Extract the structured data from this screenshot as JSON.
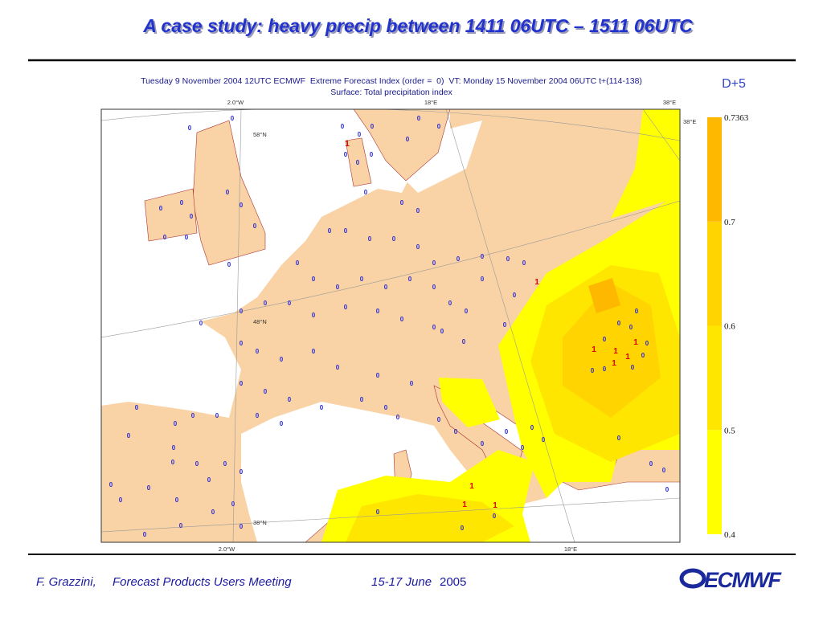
{
  "header": {
    "title": "A case study: heavy precip between 1411 06UTC – 1511 06UTC"
  },
  "map": {
    "caption_line1": "Tuesday 9 November 2004 12UTC ECMWF  Extreme Forecast Index (order =  0)  VT: Monday 15 November 2004 06UTC t+(114-138)",
    "caption_line2": "Surface: Total precipitation index",
    "lead_time": "D+5",
    "lon_labels_top": [
      "2.0°W",
      "18°E",
      "38°E"
    ],
    "lon_labels_bottom": [
      "2.0°W",
      "18°E"
    ],
    "lat_labels": [
      "58°N",
      "48°N",
      "38°N"
    ],
    "corner_label": "38°E",
    "station_zero_labels": [
      "0",
      "0",
      "0",
      "0",
      "0",
      "0",
      "0",
      "0",
      "0",
      "0",
      "0",
      "0",
      "0",
      "0",
      "0",
      "0",
      "0",
      "0",
      "0",
      "0",
      "0",
      "0",
      "0",
      "0",
      "0",
      "0",
      "0",
      "0",
      "0",
      "0",
      "0",
      "0",
      "0",
      "0",
      "0",
      "0",
      "0",
      "0",
      "0",
      "0",
      "0",
      "0",
      "0",
      "0",
      "0",
      "0",
      "0",
      "0",
      "0",
      "0",
      "0",
      "0",
      "0",
      "0",
      "0",
      "0",
      "0",
      "0",
      "0",
      "0",
      "0",
      "0",
      "0",
      "0",
      "0",
      "0",
      "0",
      "0",
      "0",
      "0",
      "0",
      "0",
      "0",
      "0",
      "0",
      "0",
      "0",
      "0",
      "0",
      "0",
      "0",
      "0",
      "0",
      "0",
      "0",
      "0",
      "0",
      "0",
      "0",
      "0",
      "0",
      "0",
      "0",
      "0",
      "0",
      "0",
      "0",
      "0",
      "0",
      "0",
      "0",
      "0",
      "0",
      "0",
      "0",
      "0",
      "0",
      "0",
      "0",
      "0",
      "0",
      "0",
      "0",
      "0",
      "0"
    ],
    "station_one_labels": [
      "1",
      "1",
      "1",
      "1",
      "1",
      "1",
      "1",
      "1",
      "1",
      "1"
    ]
  },
  "colorbar": {
    "ticks": [
      0.4,
      0.5,
      0.6,
      0.7,
      0.7363
    ],
    "colors": [
      "#ffff00",
      "#ffe600",
      "#ffd400",
      "#ffb800"
    ]
  },
  "footer": {
    "author": "F. Grazzini,",
    "meeting": "Forecast Products Users Meeting",
    "dates": "15-17 June",
    "year": "2005",
    "logo": "ECMWF"
  }
}
